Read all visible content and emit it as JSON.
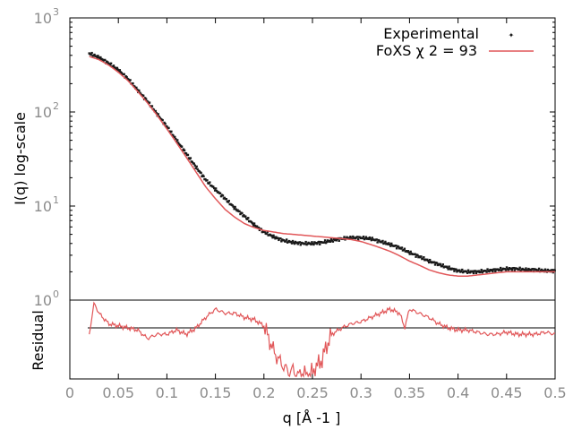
{
  "chart_data": {
    "type": "scatter",
    "xlabel": "q [Å -1 ]",
    "ylabel_top": "I(q) log-scale",
    "ylabel_bottom": "Residual",
    "xlim": [
      0,
      0.5
    ],
    "x_scale": "linear",
    "y_scale_top": "log",
    "ylim_top": [
      1,
      1000
    ],
    "x_ticks": [
      "0",
      "0.05",
      "0.1",
      "0.15",
      "0.2",
      "0.25",
      "0.3",
      "0.35",
      "0.4",
      "0.45",
      "0.5"
    ],
    "y_ticks_top": [
      {
        "base": "10",
        "exp": "0"
      },
      {
        "base": "10",
        "exp": "1"
      },
      {
        "base": "10",
        "exp": "2"
      },
      {
        "base": "10",
        "exp": "3"
      }
    ],
    "legend_position": "top-right",
    "colors": {
      "experimental": "#1a1a1a",
      "fit": "#e15759",
      "residual": "#e15759",
      "zero_line": "#000000"
    },
    "series": [
      {
        "name": "Experimental",
        "marker": "point",
        "x": [
          0.02,
          0.03,
          0.04,
          0.05,
          0.06,
          0.07,
          0.08,
          0.09,
          0.1,
          0.11,
          0.12,
          0.13,
          0.14,
          0.15,
          0.16,
          0.17,
          0.18,
          0.19,
          0.2,
          0.21,
          0.22,
          0.23,
          0.24,
          0.25,
          0.26,
          0.27,
          0.28,
          0.29,
          0.3,
          0.31,
          0.32,
          0.33,
          0.34,
          0.35,
          0.36,
          0.37,
          0.38,
          0.39,
          0.4,
          0.41,
          0.42,
          0.43,
          0.44,
          0.45,
          0.46,
          0.47,
          0.48,
          0.49,
          0.5
        ],
        "y": [
          420,
          380,
          330,
          280,
          225,
          170,
          130,
          95,
          70,
          50,
          36,
          26,
          19,
          15,
          12,
          9.5,
          7.8,
          6.3,
          5.3,
          4.7,
          4.3,
          4.1,
          4.0,
          4.0,
          4.1,
          4.3,
          4.5,
          4.6,
          4.6,
          4.5,
          4.2,
          3.9,
          3.6,
          3.2,
          2.9,
          2.6,
          2.4,
          2.2,
          2.05,
          2.0,
          2.0,
          2.05,
          2.1,
          2.15,
          2.15,
          2.1,
          2.1,
          2.05,
          2.05
        ]
      },
      {
        "name": "FoXS χ 2 = 93",
        "marker": "line",
        "x": [
          0.02,
          0.03,
          0.04,
          0.05,
          0.06,
          0.07,
          0.08,
          0.09,
          0.1,
          0.11,
          0.12,
          0.13,
          0.14,
          0.15,
          0.16,
          0.17,
          0.18,
          0.19,
          0.2,
          0.21,
          0.22,
          0.23,
          0.24,
          0.25,
          0.26,
          0.27,
          0.28,
          0.29,
          0.3,
          0.31,
          0.32,
          0.33,
          0.34,
          0.35,
          0.36,
          0.37,
          0.38,
          0.39,
          0.4,
          0.41,
          0.42,
          0.43,
          0.44,
          0.45,
          0.46,
          0.47,
          0.48,
          0.49,
          0.5
        ],
        "y": [
          390,
          360,
          315,
          265,
          215,
          165,
          125,
          92,
          66,
          47,
          33,
          23,
          16,
          12,
          9.2,
          7.6,
          6.5,
          5.9,
          5.5,
          5.3,
          5.1,
          5.0,
          4.9,
          4.8,
          4.7,
          4.6,
          4.5,
          4.4,
          4.2,
          3.9,
          3.6,
          3.3,
          2.95,
          2.6,
          2.35,
          2.1,
          1.95,
          1.85,
          1.8,
          1.8,
          1.85,
          1.9,
          1.95,
          2.0,
          2.0,
          2.0,
          2.0,
          2.0,
          2.0
        ]
      },
      {
        "name": "Residual",
        "marker": "line",
        "x": [
          0.02,
          0.025,
          0.03,
          0.04,
          0.05,
          0.06,
          0.07,
          0.08,
          0.09,
          0.1,
          0.11,
          0.12,
          0.13,
          0.14,
          0.15,
          0.16,
          0.17,
          0.18,
          0.19,
          0.2,
          0.205,
          0.21,
          0.215,
          0.22,
          0.225,
          0.23,
          0.235,
          0.24,
          0.245,
          0.25,
          0.255,
          0.26,
          0.265,
          0.27,
          0.28,
          0.29,
          0.3,
          0.31,
          0.32,
          0.33,
          0.34,
          0.345,
          0.35,
          0.36,
          0.37,
          0.38,
          0.39,
          0.4,
          0.41,
          0.42,
          0.43,
          0.44,
          0.45,
          0.46,
          0.47,
          0.48,
          0.49,
          0.5
        ],
        "y": [
          1.0,
          1.15,
          1.1,
          1.05,
          1.04,
          1.03,
          1.02,
          0.98,
          1.0,
          1.0,
          1.02,
          1.0,
          1.03,
          1.08,
          1.12,
          1.1,
          1.1,
          1.08,
          1.07,
          1.04,
          0.98,
          0.92,
          0.88,
          0.85,
          0.82,
          0.83,
          0.8,
          0.82,
          0.8,
          0.82,
          0.85,
          0.88,
          0.95,
          1.0,
          1.03,
          1.05,
          1.06,
          1.08,
          1.1,
          1.12,
          1.1,
          1.03,
          1.12,
          1.1,
          1.08,
          1.05,
          1.03,
          1.02,
          1.02,
          1.01,
          1.0,
          1.0,
          1.01,
          1.0,
          1.0,
          1.0,
          1.01,
          1.0
        ]
      }
    ]
  }
}
